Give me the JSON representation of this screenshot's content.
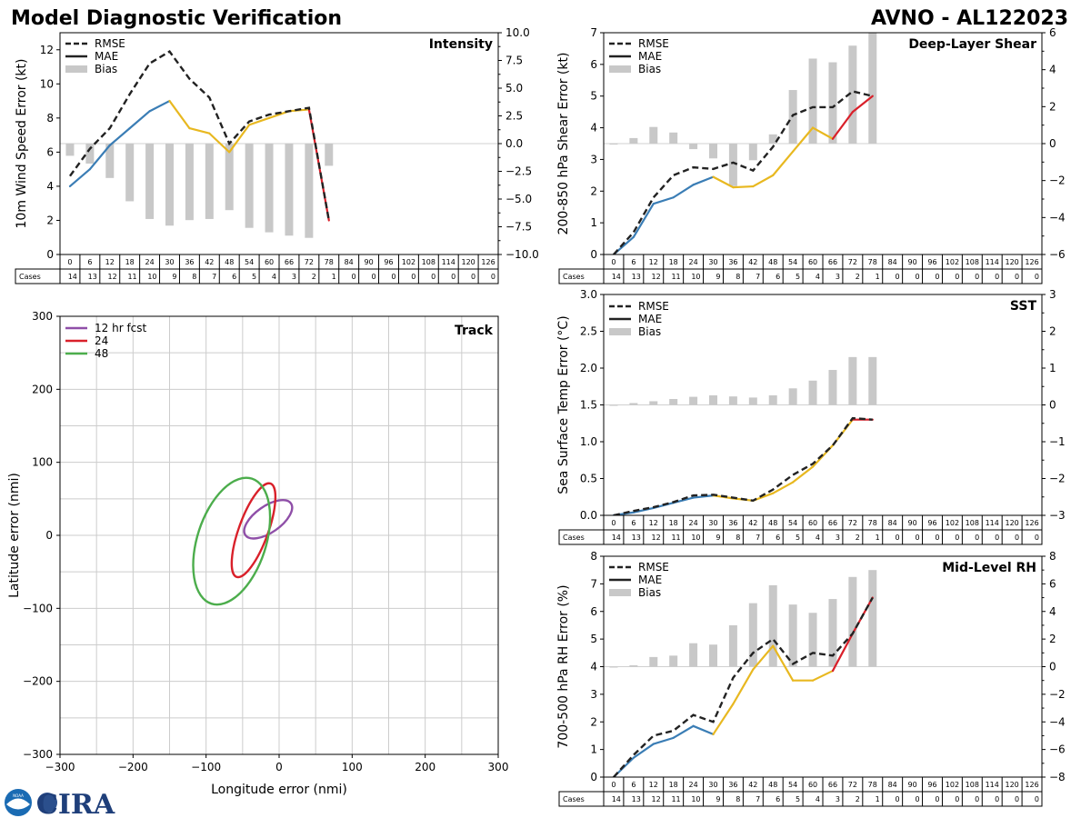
{
  "header": {
    "title": "Model Diagnostic Verification",
    "storm": "AVNO - AL122023"
  },
  "branding": {
    "logo_text": "CIRA",
    "noaa_text": "NOAA"
  },
  "table": {
    "hours": [
      0,
      6,
      12,
      18,
      24,
      30,
      36,
      42,
      48,
      54,
      60,
      66,
      72,
      78,
      84,
      90,
      96,
      102,
      108,
      114,
      120,
      126
    ],
    "cases_label": "Cases",
    "cases": [
      14,
      13,
      12,
      11,
      10,
      9,
      8,
      7,
      6,
      5,
      4,
      3,
      2,
      1,
      0,
      0,
      0,
      0,
      0,
      0,
      0,
      0
    ]
  },
  "colors": {
    "mae_early": "#3a7db5",
    "mae_mid": "#e8b820",
    "mae_late": "#d9202a",
    "rmse": "#222222",
    "bias": "#c8c8c8",
    "grid": "#cccccc",
    "track12": "#8f4fa8",
    "track24": "#d9202a",
    "track48": "#4cad4c"
  },
  "chart_data": [
    {
      "id": "intensity",
      "type": "line",
      "title": "Intensity",
      "ylabel": "10m Wind Speed Error (kt)",
      "ylim": [
        0,
        13
      ],
      "yticks": [
        0,
        2,
        4,
        6,
        8,
        10,
        12
      ],
      "y2lim": [
        -10,
        10
      ],
      "y2ticks": [
        -10.0,
        -7.5,
        -5.0,
        -2.5,
        0.0,
        2.5,
        5.0,
        7.5,
        10.0
      ],
      "y2ticklabels": [
        "−10.0",
        "−7.5",
        "−5.0",
        "−2.5",
        "0.0",
        "2.5",
        "5.0",
        "7.5",
        "10.0"
      ],
      "legend": [
        "RMSE",
        "MAE",
        "Bias"
      ],
      "x": [
        0,
        6,
        12,
        18,
        24,
        30,
        36,
        42,
        48,
        54,
        60,
        66,
        72,
        78
      ],
      "rmse": [
        4.6,
        6.2,
        7.4,
        9.4,
        11.2,
        11.9,
        10.3,
        9.2,
        6.5,
        7.8,
        8.2,
        8.4,
        8.6,
        2.0
      ],
      "mae": [
        4.0,
        5.0,
        6.4,
        7.4,
        8.4,
        9.0,
        7.4,
        7.1,
        6.0,
        7.6,
        8.0,
        8.4,
        8.5,
        2.0
      ],
      "bias": [
        -1.1,
        -1.8,
        -3.1,
        -5.2,
        -6.8,
        -7.4,
        -6.9,
        -6.8,
        -6.0,
        -7.6,
        -8.0,
        -8.3,
        -8.5,
        -2.0
      ]
    },
    {
      "id": "shear",
      "type": "line",
      "title": "Deep-Layer Shear",
      "ylabel": "200-850 hPa Shear Error (kt)",
      "ylim": [
        0,
        7
      ],
      "yticks": [
        0,
        1,
        2,
        3,
        4,
        5,
        6,
        7
      ],
      "y2lim": [
        -6,
        6
      ],
      "y2ticks": [
        -6,
        -4,
        -2,
        0,
        2,
        4,
        6
      ],
      "y2ticklabels": [
        "−6",
        "−4",
        "−2",
        "0",
        "2",
        "4",
        "6"
      ],
      "legend": [
        "RMSE",
        "MAE",
        "Bias"
      ],
      "x": [
        0,
        6,
        12,
        18,
        24,
        30,
        36,
        42,
        48,
        54,
        60,
        66,
        72,
        78
      ],
      "rmse": [
        0.0,
        0.7,
        1.8,
        2.5,
        2.75,
        2.7,
        2.9,
        2.65,
        3.4,
        4.4,
        4.65,
        4.65,
        5.15,
        5.0
      ],
      "mae": [
        0.0,
        0.55,
        1.6,
        1.8,
        2.2,
        2.45,
        2.12,
        2.15,
        2.5,
        3.25,
        4.0,
        3.65,
        4.5,
        5.0
      ],
      "bias": [
        0.0,
        0.3,
        0.9,
        0.6,
        -0.3,
        -0.8,
        -2.3,
        -0.9,
        0.5,
        2.9,
        4.6,
        4.4,
        5.3,
        6.0
      ]
    },
    {
      "id": "sst",
      "type": "line",
      "title": "SST",
      "ylabel": "Sea Surface Temp Error (°C)",
      "ylim": [
        0,
        3
      ],
      "yticks": [
        0.0,
        0.5,
        1.0,
        1.5,
        2.0,
        2.5,
        3.0
      ],
      "yticklabels": [
        "0.0",
        "0.5",
        "1.0",
        "1.5",
        "2.0",
        "2.5",
        "3.0"
      ],
      "y2lim": [
        -3,
        3
      ],
      "y2ticks": [
        -3,
        -2,
        -1,
        0,
        1,
        2,
        3
      ],
      "y2ticklabels": [
        "−3",
        "−2",
        "−1",
        "0",
        "1",
        "2",
        "3"
      ],
      "legend": [
        "RMSE",
        "MAE",
        "Bias"
      ],
      "x": [
        0,
        6,
        12,
        18,
        24,
        30,
        36,
        42,
        48,
        54,
        60,
        66,
        72,
        78
      ],
      "rmse": [
        0.0,
        0.06,
        0.11,
        0.18,
        0.27,
        0.28,
        0.24,
        0.2,
        0.35,
        0.55,
        0.7,
        0.95,
        1.32,
        1.3
      ],
      "mae": [
        0.0,
        0.04,
        0.1,
        0.17,
        0.24,
        0.27,
        0.23,
        0.2,
        0.3,
        0.45,
        0.66,
        0.95,
        1.3,
        1.3
      ],
      "bias": [
        0.0,
        0.05,
        0.1,
        0.16,
        0.22,
        0.26,
        0.23,
        0.2,
        0.26,
        0.45,
        0.66,
        0.95,
        1.3,
        1.3
      ]
    },
    {
      "id": "rh",
      "type": "line",
      "title": "Mid-Level RH",
      "ylabel": "700-500 hPa RH Error (%)",
      "ylim": [
        0,
        8
      ],
      "yticks": [
        0,
        1,
        2,
        3,
        4,
        5,
        6,
        7,
        8
      ],
      "y2lim": [
        -8,
        8
      ],
      "y2ticks": [
        -8,
        -6,
        -4,
        -2,
        0,
        2,
        4,
        6,
        8
      ],
      "y2ticklabels": [
        "−8",
        "−6",
        "−4",
        "−2",
        "0",
        "2",
        "4",
        "6",
        "8"
      ],
      "legend": [
        "RMSE",
        "MAE",
        "Bias"
      ],
      "x": [
        0,
        6,
        12,
        18,
        24,
        30,
        36,
        42,
        48,
        54,
        60,
        66,
        72,
        78
      ],
      "rmse": [
        0.0,
        0.8,
        1.5,
        1.68,
        2.25,
        2.0,
        3.6,
        4.5,
        5.0,
        4.1,
        4.5,
        4.4,
        5.2,
        6.5
      ],
      "mae": [
        0.0,
        0.7,
        1.2,
        1.42,
        1.85,
        1.55,
        2.65,
        3.9,
        4.75,
        3.5,
        3.5,
        3.85,
        5.2,
        6.5
      ],
      "bias": [
        0.0,
        0.1,
        0.7,
        0.8,
        1.7,
        1.6,
        3.0,
        4.6,
        5.9,
        4.5,
        3.9,
        4.9,
        6.5,
        7.0
      ]
    },
    {
      "id": "track",
      "type": "scatter",
      "title": "Track",
      "xlabel": "Longitude error (nmi)",
      "ylabel": "Latitude error (nmi)",
      "xlim": [
        -300,
        300
      ],
      "ylim": [
        -300,
        300
      ],
      "ticks": [
        -300,
        -200,
        -100,
        0,
        100,
        200,
        300
      ],
      "ticklabels": [
        "−300",
        "−200",
        "−100",
        "0",
        "100",
        "200",
        "300"
      ],
      "legend": [
        "12 hr fcst",
        "24",
        "48"
      ],
      "ellipses": [
        {
          "label": "12 hr fcst",
          "cx": -15,
          "cy": 22,
          "rx": 38,
          "ry": 18,
          "angle": 35
        },
        {
          "label": "24",
          "cx": -35,
          "cy": 7,
          "rx": 68,
          "ry": 20,
          "angle": 70
        },
        {
          "label": "48",
          "cx": -65,
          "cy": -8,
          "rx": 90,
          "ry": 47,
          "angle": 72
        }
      ]
    }
  ]
}
